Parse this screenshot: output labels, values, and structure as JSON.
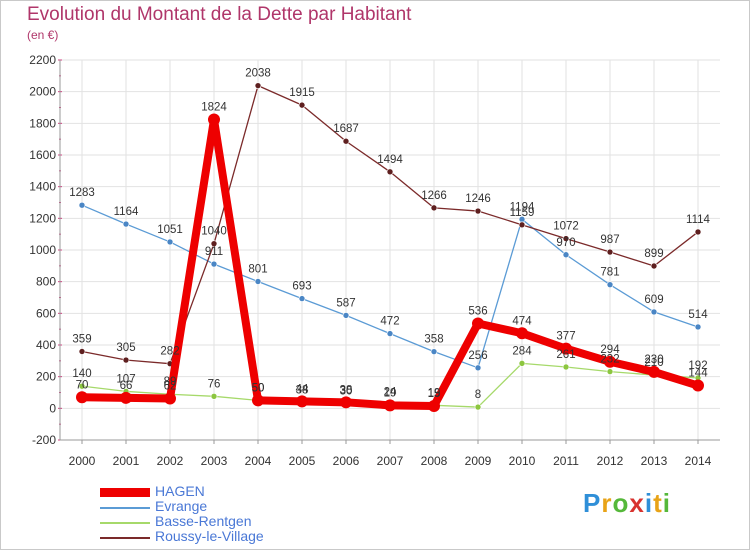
{
  "title": "Evolution du Montant de la Dette par Habitant",
  "unit_label": "(en €)",
  "logo": {
    "text": "Proxiti",
    "letters": [
      {
        "ch": "P",
        "color": "#2f8fd8"
      },
      {
        "ch": "r",
        "color": "#e8a317"
      },
      {
        "ch": "o",
        "color": "#55b83a"
      },
      {
        "ch": "x",
        "color": "#d8332f"
      },
      {
        "ch": "i",
        "color": "#2f8fd8"
      },
      {
        "ch": "t",
        "color": "#e8a317"
      },
      {
        "ch": "i",
        "color": "#55b83a"
      }
    ]
  },
  "chart_data": {
    "type": "line",
    "title": "Evolution du Montant de la Dette par Habitant",
    "ylabel": "(en €)",
    "xlabel": "",
    "x": [
      2000,
      2001,
      2002,
      2003,
      2004,
      2005,
      2006,
      2007,
      2008,
      2009,
      2010,
      2011,
      2012,
      2013,
      2014
    ],
    "ylim": [
      -200,
      2200
    ],
    "ytick_step": 200,
    "grid": true,
    "legend": "bottom-left",
    "series": [
      {
        "name": "HAGEN",
        "color": "#ee0000",
        "marker": "#ee0000",
        "width": "thick",
        "values": [
          70,
          66,
          62,
          1824,
          50,
          44,
          38,
          19,
          15,
          536,
          474,
          377,
          294,
          230,
          144
        ]
      },
      {
        "name": "Evrange",
        "color": "#5b9bd5",
        "marker": "#4a86c5",
        "width": "thin",
        "values": [
          1283,
          1164,
          1051,
          911,
          801,
          693,
          587,
          472,
          358,
          256,
          1194,
          970,
          781,
          609,
          514
        ]
      },
      {
        "name": "Basse-Rentgen",
        "color": "#a6d96a",
        "marker": "#8cc63f",
        "width": "thin",
        "values": [
          140,
          107,
          89,
          76,
          50,
          38,
          30,
          24,
          19,
          8,
          284,
          261,
          232,
          210,
          192
        ]
      },
      {
        "name": "Roussy-le-Village",
        "color": "#7b2a2a",
        "marker": "#5e1f1f",
        "width": "thin",
        "values": [
          359,
          305,
          282,
          1040,
          2038,
          1915,
          1687,
          1494,
          1266,
          1246,
          1159,
          1072,
          987,
          899,
          1114
        ]
      }
    ]
  }
}
